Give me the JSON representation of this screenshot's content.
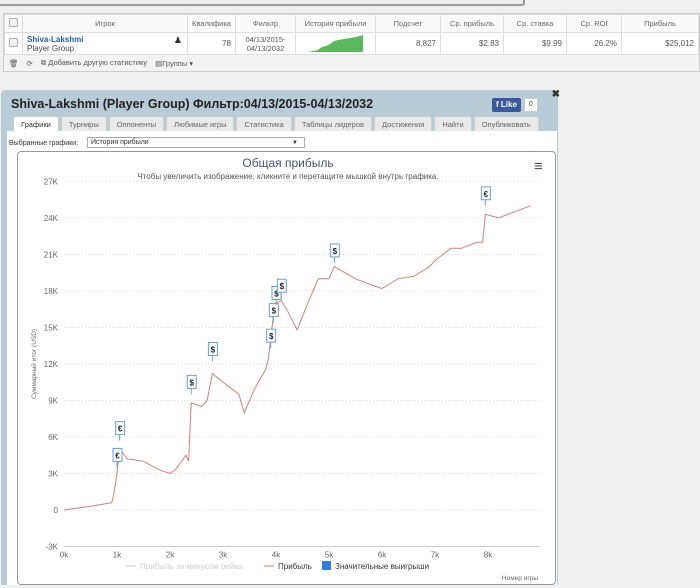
{
  "stats_table": {
    "headers": [
      "Игрок",
      "Квалифика",
      "Фильтр",
      "История прибыли",
      "Подсчет",
      "Ср. прибыль",
      "Ср. ставка",
      "Ср. ROI",
      "Прибыль"
    ],
    "row": {
      "player": "Shiva-Lakshmi",
      "group": "Player Group",
      "qualification": "78",
      "filter": "04/13/2015-04/13/2032",
      "count": "8,827",
      "avg_profit": "$2.83",
      "avg_stake": "$9.99",
      "avg_roi": "26.2%",
      "profit": "$25,012"
    },
    "toolbar": {
      "add_stat": "Добавить другую статистику",
      "groups": "Группы ▾"
    }
  },
  "dialog": {
    "title": "Shiva-Lakshmi (Player Group) Фильтр:04/13/2015-04/13/2032",
    "fb_like": "Like",
    "fb_count": "0",
    "tabs": [
      "Графики",
      "Турниры",
      "Оппоненты",
      "Любимые игры",
      "Статистика",
      "Таблицы лидеров",
      "Достижения",
      "Найти",
      "Опубликовать"
    ],
    "selected_label": "Выбранные графики:",
    "selected_value": "История прибыли"
  },
  "colors": {
    "profit": "#c98080",
    "net": "#cccccc",
    "big_wins": "#2f7ed8",
    "sparkline": "#5cb85c"
  },
  "chart_data": {
    "type": "line",
    "title": "Общая прибыль",
    "subtitle": "Чтобы увеличить изображение, кликните и перетащите мышкой внутрь графика.",
    "xlabel": "Номер игры",
    "ylabel": "Суммарный итог (USD)",
    "xlim": [
      0,
      8.8
    ],
    "ylim": [
      -3,
      27
    ],
    "x_ticks": [
      "0k",
      "1k",
      "2k",
      "3k",
      "4k",
      "5k",
      "6k",
      "7k",
      "8k"
    ],
    "y_ticks": [
      "-3K",
      "0",
      "3K",
      "6K",
      "9K",
      "12K",
      "15K",
      "18K",
      "21K",
      "24K",
      "27K"
    ],
    "legend": [
      "Прибыль за минусом рейка",
      "Прибыль",
      "Значительные выигрыши"
    ],
    "series": [
      {
        "name": "Прибыль",
        "x": [
          0,
          0.5,
          0.9,
          0.95,
          1.0,
          1.05,
          1.2,
          1.5,
          1.8,
          2.0,
          2.1,
          2.3,
          2.35,
          2.4,
          2.6,
          2.7,
          2.8,
          3.0,
          3.3,
          3.4,
          3.6,
          3.8,
          3.85,
          3.9,
          3.95,
          4.0,
          4.1,
          4.2,
          4.4,
          4.6,
          4.8,
          5.0,
          5.1,
          5.3,
          5.5,
          5.8,
          6.0,
          6.3,
          6.6,
          6.9,
          7.0,
          7.3,
          7.5,
          7.8,
          7.9,
          7.95,
          8.2,
          8.5,
          8.8
        ],
        "y": [
          0,
          0.3,
          0.6,
          1.5,
          3.0,
          5.0,
          4.2,
          4.0,
          3.3,
          3.0,
          3.3,
          4.5,
          4.0,
          8.8,
          8.5,
          9.0,
          11.2,
          10.5,
          9.5,
          8.0,
          10.0,
          11.5,
          12.3,
          14.0,
          16.0,
          17.0,
          17.2,
          16.5,
          14.8,
          17.0,
          19.0,
          19.0,
          20.0,
          19.5,
          19.0,
          18.5,
          18.2,
          19.0,
          19.2,
          20.0,
          20.5,
          21.5,
          21.5,
          22.0,
          22.0,
          24.3,
          24.0,
          24.5,
          25.0
        ]
      }
    ],
    "big_wins": [
      {
        "x": 1.0,
        "y": 3.5,
        "label": "€"
      },
      {
        "x": 1.05,
        "y": 5.7,
        "label": "€"
      },
      {
        "x": 2.4,
        "y": 9.5,
        "label": "$"
      },
      {
        "x": 2.8,
        "y": 12.2,
        "label": "$"
      },
      {
        "x": 3.9,
        "y": 13.3,
        "label": "$"
      },
      {
        "x": 3.95,
        "y": 15.4,
        "label": "$"
      },
      {
        "x": 4.0,
        "y": 16.8,
        "label": "$"
      },
      {
        "x": 4.1,
        "y": 17.4,
        "label": "$"
      },
      {
        "x": 5.1,
        "y": 20.3,
        "label": "$"
      },
      {
        "x": 7.95,
        "y": 25.0,
        "label": "€"
      }
    ]
  }
}
